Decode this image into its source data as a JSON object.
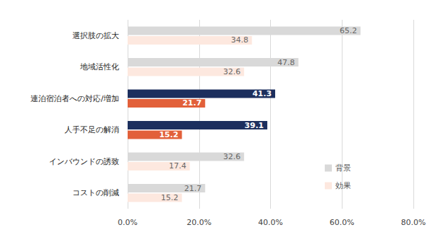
{
  "chart_data": {
    "type": "bar",
    "orientation": "horizontal",
    "categories": [
      "選択肢の拡大",
      "地域活性化",
      "連泊宿泊者への対応/増加",
      "人手不足の解消",
      "インバウンドの誘致",
      "コストの削減"
    ],
    "series": [
      {
        "name": "背景",
        "color": "#d9d9d9",
        "colors": [
          "#d9d9d9",
          "#d9d9d9",
          "#1c2f5e",
          "#1c2f5e",
          "#d9d9d9",
          "#d9d9d9"
        ],
        "values": [
          65.2,
          47.8,
          41.3,
          39.1,
          32.6,
          21.7
        ]
      },
      {
        "name": "効果",
        "color": "#fde8df",
        "colors": [
          "#fde8df",
          "#fde8df",
          "#e2603a",
          "#e2603a",
          "#fde8df",
          "#fde8df"
        ],
        "values": [
          34.8,
          32.6,
          21.7,
          15.2,
          17.4,
          15.2
        ]
      }
    ],
    "xlim": [
      0,
      80
    ],
    "xticks": [
      {
        "value": 0,
        "label": "0.0%"
      },
      {
        "value": 20,
        "label": "20.0%"
      },
      {
        "value": 40,
        "label": "40.0%"
      },
      {
        "value": 60,
        "label": "60.0%"
      },
      {
        "value": 80,
        "label": "80.0%"
      }
    ],
    "grid": true,
    "data_labels": true,
    "legend": "lower right"
  }
}
